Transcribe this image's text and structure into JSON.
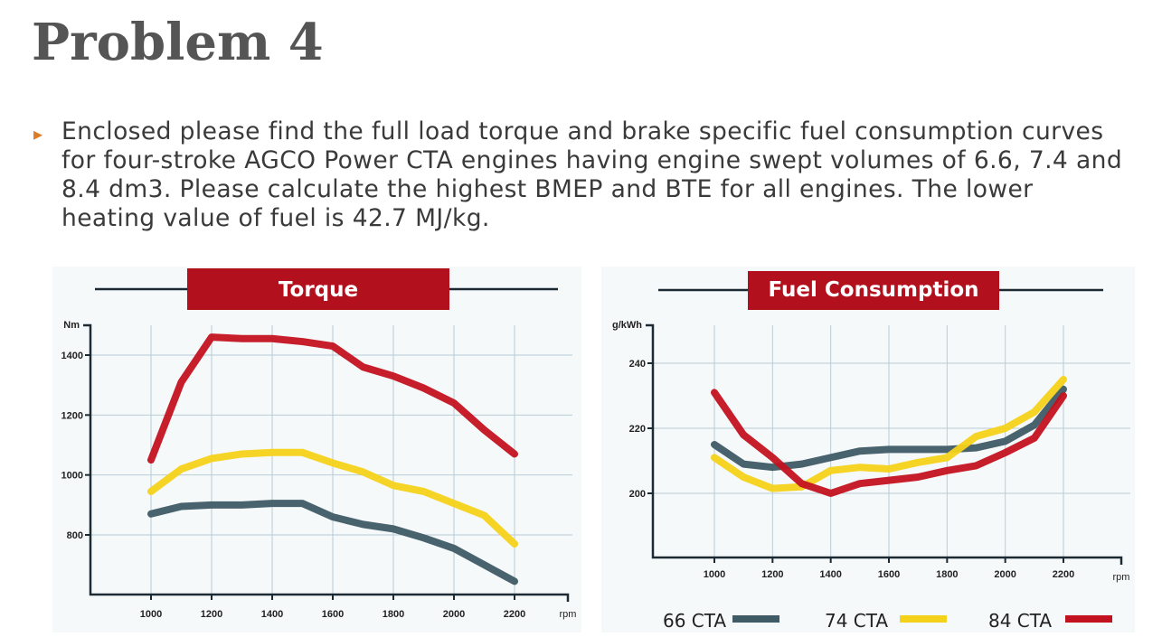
{
  "slide": {
    "title": "Problem 4",
    "bullet_icon": "triangle-bullet-icon",
    "bullet_color": "#e07b25",
    "text": "Enclosed please find the full load torque and brake specific fuel consumption curves for four-stroke AGCO Power CTA engines having engine swept volumes of 6.6, 7.4 and 8.4 dm3. Please calculate the highest BMEP and BTE for all engines. The lower heating value of fuel is 42.7 MJ/kg."
  },
  "legend": [
    {
      "name": "66 CTA",
      "color": "#3f5b66"
    },
    {
      "name": "74 CTA",
      "color": "#f4d21a"
    },
    {
      "name": "84 CTA",
      "color": "#c3121f"
    }
  ],
  "chart_data": [
    {
      "type": "line",
      "title": "Torque",
      "ylabel": "Nm",
      "xlabel": "rpm",
      "xlim": [
        1000,
        2200
      ],
      "ylim": [
        600,
        1500
      ],
      "x_ticks": [
        "1000",
        "1200",
        "1400",
        "1600",
        "1800",
        "2000",
        "2200"
      ],
      "y_ticks": [
        "800",
        "1000",
        "1200",
        "1400"
      ],
      "grid": true,
      "x": [
        1000,
        1100,
        1200,
        1300,
        1400,
        1500,
        1600,
        1700,
        1800,
        1900,
        2000,
        2100,
        2200
      ],
      "series": [
        {
          "name": "66 CTA",
          "values": [
            870,
            895,
            900,
            900,
            905,
            905,
            860,
            835,
            820,
            790,
            755,
            700,
            645
          ]
        },
        {
          "name": "74 CTA",
          "values": [
            945,
            1020,
            1055,
            1070,
            1075,
            1075,
            1040,
            1010,
            965,
            945,
            905,
            865,
            770
          ]
        },
        {
          "name": "84 CTA",
          "values": [
            1050,
            1310,
            1460,
            1455,
            1455,
            1445,
            1430,
            1360,
            1330,
            1290,
            1240,
            1150,
            1070
          ]
        }
      ]
    },
    {
      "type": "line",
      "title": "Fuel Consumption",
      "ylabel": "g/kWh",
      "xlabel": "rpm",
      "xlim": [
        1000,
        2200
      ],
      "ylim": [
        180,
        250
      ],
      "x_ticks": [
        "1000",
        "1200",
        "1400",
        "1600",
        "1800",
        "2000",
        "2200"
      ],
      "y_ticks": [
        "200",
        "220",
        "240"
      ],
      "grid": true,
      "legend_position": "bottom",
      "x": [
        1000,
        1100,
        1200,
        1300,
        1400,
        1500,
        1600,
        1700,
        1800,
        1900,
        2000,
        2100,
        2200
      ],
      "series": [
        {
          "name": "66 CTA",
          "values": [
            215,
            209,
            208,
            209,
            211,
            213,
            213.5,
            213.5,
            213.5,
            214,
            216,
            221,
            232
          ]
        },
        {
          "name": "74 CTA",
          "values": [
            211,
            205,
            201.5,
            202,
            207,
            208,
            207.5,
            209.5,
            211,
            217.5,
            220,
            225,
            235
          ]
        },
        {
          "name": "84 CTA",
          "values": [
            231,
            218,
            211,
            203,
            200,
            203,
            204,
            205,
            207,
            208.5,
            212.5,
            217,
            230
          ]
        }
      ]
    }
  ]
}
